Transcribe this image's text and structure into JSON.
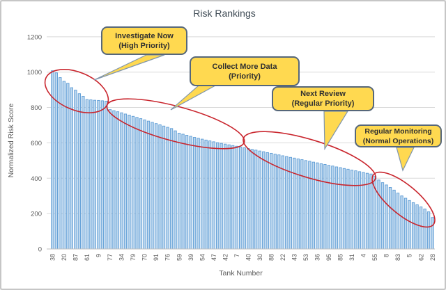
{
  "chart_data": {
    "type": "bar",
    "title": "Risk Rankings",
    "xlabel": "Tank Number",
    "ylabel": "Normalized Risk Score",
    "ylim": [
      0,
      1200
    ],
    "yticks": [
      0,
      200,
      400,
      600,
      800,
      1000,
      1200
    ],
    "grid": true,
    "legend": "none",
    "x_label_every": 3,
    "x_tick_labels": [
      "38",
      "20",
      "87",
      "61",
      "9",
      "77",
      "34",
      "79",
      "70",
      "91",
      "76",
      "59",
      "39",
      "54",
      "47",
      "42",
      "7",
      "40",
      "30",
      "88",
      "22",
      "43",
      "53",
      "36",
      "95",
      "85",
      "31",
      "4",
      "55",
      "8",
      "83",
      "5",
      "62",
      "28"
    ],
    "values": [
      1008,
      996,
      969,
      948,
      937,
      912,
      898,
      878,
      863,
      845,
      843,
      841,
      840,
      838,
      836,
      788,
      782,
      776,
      770,
      763,
      757,
      750,
      744,
      737,
      730,
      723,
      716,
      709,
      702,
      695,
      688,
      681,
      668,
      655,
      649,
      643,
      637,
      631,
      626,
      621,
      616,
      611,
      606,
      601,
      597,
      593,
      589,
      585,
      581,
      577,
      572,
      568,
      563,
      559,
      554,
      550,
      545,
      541,
      536,
      532,
      527,
      523,
      518,
      514,
      509,
      505,
      500,
      496,
      491,
      487,
      482,
      478,
      473,
      469,
      464,
      460,
      455,
      451,
      446,
      442,
      437,
      433,
      428,
      424,
      410,
      390,
      375,
      362,
      348,
      333,
      316,
      300,
      287,
      274,
      262,
      250,
      238,
      226,
      210,
      178
    ],
    "annotations": [
      {
        "label": "Investigate Now (High Priority)",
        "bar_start": 1,
        "bar_end": 15
      },
      {
        "label": "Collect More Data (Priority)",
        "bar_start": 16,
        "bar_end": 50
      },
      {
        "label": "Next Review (Regular Priority)",
        "bar_start": 51,
        "bar_end": 84
      },
      {
        "label": "Regular Monitoring (Normal Operations)",
        "bar_start": 85,
        "bar_end": 100
      }
    ]
  },
  "callouts": [
    {
      "line1": "Investigate Now",
      "line2": "(High Priority)"
    },
    {
      "line1": "Collect More Data",
      "line2": "(Priority)"
    },
    {
      "line1": "Next Review",
      "line2": "(Regular Priority)"
    },
    {
      "line1": "Regular Monitoring",
      "line2": "(Normal Operations)"
    }
  ],
  "colors": {
    "bar_fill": "#BDD7EE",
    "bar_edge": "#5B9BD5",
    "gridline": "#D9D9D9",
    "axis_line": "#BFBFBF",
    "tick_text": "#595959",
    "title_text": "#3E4A54",
    "ellipse_red": "#C9252D",
    "callout_fill": "#FFD950",
    "callout_border": "#56677A",
    "pointer_edge": "#8096AD"
  }
}
